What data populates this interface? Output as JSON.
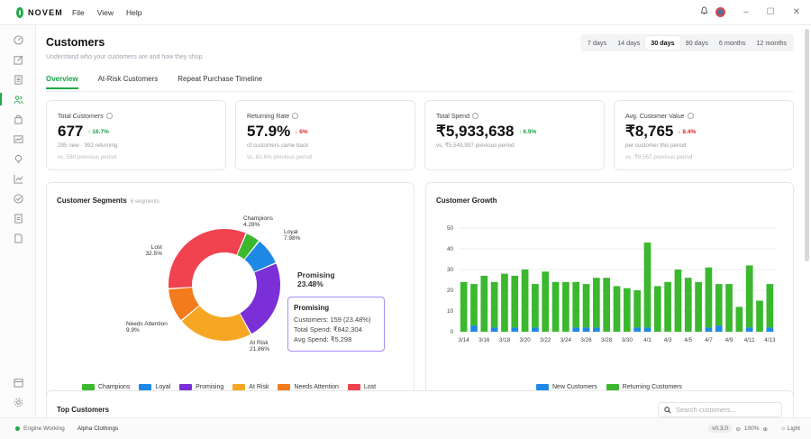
{
  "app": {
    "name": "NOVEM",
    "menu": [
      "File",
      "View",
      "Help"
    ]
  },
  "header": {
    "title": "Customers",
    "subtitle": "Understand who your customers are and how they shop"
  },
  "ranges": {
    "items": [
      "7 days",
      "14 days",
      "30 days",
      "90 days",
      "6 months",
      "12 months"
    ],
    "active": "30 days"
  },
  "tabs": {
    "items": [
      "Overview",
      "At-Risk Customers",
      "Repeat Purchase Timeline"
    ],
    "active": "Overview"
  },
  "kpis": [
    {
      "label": "Total Customers",
      "value": "677",
      "delta": "↑ 16.7%",
      "dir": "up",
      "line1": "285 new · 392 returning",
      "line2": "vs. 580 previous period"
    },
    {
      "label": "Returning Rate",
      "value": "57.9%",
      "delta": "↓ 6%",
      "dir": "down",
      "line1": "of customers came back",
      "line2": "vs. 61.6% previous period"
    },
    {
      "label": "Total Spend",
      "value": "₹5,933,638",
      "delta": "↑ 6.9%",
      "dir": "up",
      "line1": "vs. ₹5,549,997 previous period",
      "line2": ""
    },
    {
      "label": "Avg. Customer Value",
      "value": "₹8,765",
      "delta": "↓ 8.4%",
      "dir": "down",
      "line1": "per customer this period",
      "line2": "vs. ₹9,567 previous period"
    }
  ],
  "segments": {
    "title": "Customer Segments",
    "count": "6 segments",
    "tooltip": {
      "title": "Promising",
      "customers": "Customers: 159 (23.48%)",
      "spend": "Total Spend: ₹842,304",
      "avg": "Avg Spend: ₹5,298"
    }
  },
  "growth": {
    "title": "Customer Growth"
  },
  "chart_data": [
    {
      "type": "pie",
      "donut": true,
      "slices": [
        {
          "name": "Champions",
          "pct": 4.28,
          "label": "4.28%",
          "color": "#3bb82e"
        },
        {
          "name": "Loyal",
          "pct": 7.98,
          "label": "7.98%",
          "color": "#1e88e5"
        },
        {
          "name": "Promising",
          "pct": 23.48,
          "label": "23.48%",
          "color": "#7b2fd6"
        },
        {
          "name": "At Risk",
          "pct": 21.86,
          "label": "21.86%",
          "color": "#f5a623"
        },
        {
          "name": "Needs Attention",
          "pct": 9.9,
          "label": "9.9%",
          "color": "#f37b1c"
        },
        {
          "name": "Lost",
          "pct": 32.5,
          "label": "32.5%",
          "color": "#f0434f"
        }
      ],
      "legend": "bottom"
    },
    {
      "type": "bar",
      "stacked": true,
      "categories": [
        "3/14",
        "3/15",
        "3/16",
        "3/17",
        "3/18",
        "3/19",
        "3/20",
        "3/21",
        "3/22",
        "3/23",
        "3/24",
        "3/25",
        "3/26",
        "3/27",
        "3/28",
        "3/29",
        "3/30",
        "3/31",
        "4/1",
        "4/2",
        "4/3",
        "4/4",
        "4/5",
        "4/6",
        "4/7",
        "4/8",
        "4/9",
        "4/10",
        "4/11",
        "4/12",
        "4/13"
      ],
      "tick_labels": [
        "3/14",
        "3/16",
        "3/18",
        "3/20",
        "3/22",
        "3/24",
        "3/26",
        "3/28",
        "3/30",
        "4/1",
        "4/3",
        "4/5",
        "4/7",
        "4/9",
        "4/11",
        "4/13"
      ],
      "series": [
        {
          "name": "New Customers",
          "color": "#1e88e5",
          "values": [
            0,
            3,
            0,
            2,
            0,
            2,
            0,
            2,
            0,
            0,
            0,
            2,
            2,
            2,
            0,
            0,
            0,
            2,
            2,
            0,
            0,
            0,
            0,
            0,
            2,
            3,
            0,
            0,
            2,
            0,
            2
          ]
        },
        {
          "name": "Returning Customers",
          "color": "#3bb82e",
          "values": [
            24,
            20,
            27,
            22,
            28,
            25,
            30,
            21,
            29,
            24,
            24,
            22,
            21,
            24,
            26,
            22,
            21,
            18,
            41,
            22,
            24,
            30,
            26,
            24,
            29,
            20,
            23,
            12,
            30,
            15,
            21
          ]
        }
      ],
      "ylim": [
        0,
        50
      ],
      "yticks": [
        0,
        10,
        20,
        30,
        40,
        50
      ],
      "grid": true,
      "legend": "bottom"
    }
  ],
  "top_customers": {
    "title": "Top Customers",
    "search_placeholder": "Search customers..."
  },
  "status": {
    "engine": "Engine Working",
    "workspace": "Alpha Clothings",
    "version": "v0.3.0",
    "zoom": "100%",
    "theme": "Light"
  }
}
